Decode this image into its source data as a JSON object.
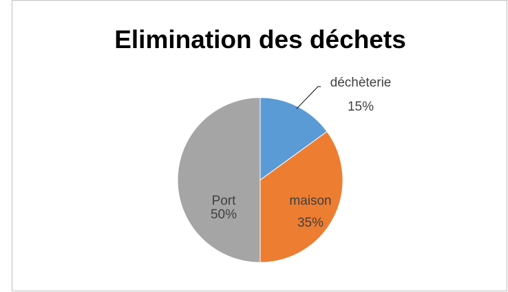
{
  "chart_data": {
    "type": "pie",
    "title": "Elimination des déchets",
    "categories": [
      "déchèterie",
      "maison",
      "Port"
    ],
    "values": [
      15,
      35,
      50
    ],
    "value_labels": [
      "15%",
      "35%",
      "50%"
    ],
    "colors": [
      "#5b9bd5",
      "#ed7d31",
      "#a5a5a5"
    ]
  }
}
